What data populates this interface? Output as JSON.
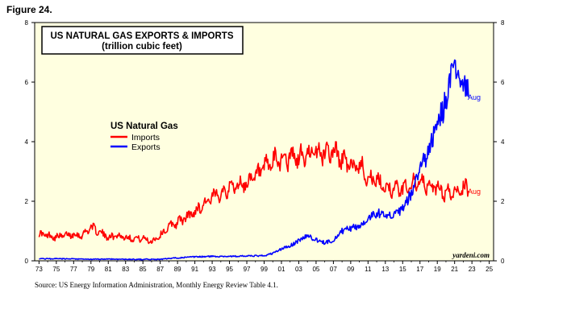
{
  "figure_label": "Figure 24.",
  "source": "Source: US Energy Information Administration, Monthly Energy Review Table 4.1.",
  "watermark": "yardeni.com",
  "chart_data": {
    "type": "line",
    "title": "US NATURAL GAS EXPORTS & IMPORTS",
    "subtitle": "(trillion cubic feet)",
    "legend_title": "US Natural Gas",
    "legend_position": "upper-left",
    "grid": false,
    "xlim": [
      1972.5,
      2025.5
    ],
    "ylim": [
      0,
      8
    ],
    "x_ticks": [
      "73",
      "75",
      "77",
      "79",
      "81",
      "83",
      "85",
      "87",
      "89",
      "91",
      "93",
      "95",
      "97",
      "99",
      "01",
      "03",
      "05",
      "07",
      "09",
      "11",
      "13",
      "15",
      "17",
      "19",
      "21",
      "23",
      "25"
    ],
    "y_ticks_left": [
      "0",
      "2",
      "4",
      "6",
      "8"
    ],
    "y_ticks_right": [
      "0",
      "2",
      "4",
      "6",
      "8"
    ],
    "colors": {
      "imports": "#ff0000",
      "exports": "#0000ff",
      "plot_bg": "#ffffe0"
    },
    "series": [
      {
        "name": "Imports",
        "end_label": "Aug",
        "color": "#ff0000",
        "x": [
          1973,
          1974,
          1975,
          1976,
          1977,
          1978,
          1979,
          1980,
          1981,
          1982,
          1983,
          1984,
          1985,
          1986,
          1987,
          1988,
          1989,
          1990,
          1991,
          1992,
          1993,
          1994,
          1995,
          1996,
          1997,
          1998,
          1999,
          2000,
          2001,
          2002,
          2003,
          2004,
          2005,
          2006,
          2007,
          2008,
          2009,
          2010,
          2011,
          2012,
          2013,
          2014,
          2015,
          2016,
          2017,
          2018,
          2019,
          2020,
          2021,
          2022,
          2022.6
        ],
        "y": [
          0.9,
          0.85,
          0.8,
          0.85,
          0.9,
          0.85,
          1.15,
          0.95,
          0.8,
          0.85,
          0.8,
          0.75,
          0.75,
          0.65,
          0.85,
          1.15,
          1.3,
          1.45,
          1.65,
          1.9,
          2.1,
          2.3,
          2.45,
          2.55,
          2.6,
          2.8,
          3.1,
          3.3,
          3.45,
          3.45,
          3.45,
          3.55,
          3.6,
          3.65,
          3.7,
          3.4,
          3.15,
          3.25,
          2.8,
          2.65,
          2.5,
          2.4,
          2.4,
          2.6,
          2.6,
          2.5,
          2.45,
          2.25,
          2.3,
          2.5,
          2.35
        ]
      },
      {
        "name": "Exports",
        "end_label": "Aug",
        "color": "#0000ff",
        "x": [
          1973,
          1975,
          1977,
          1979,
          1981,
          1983,
          1985,
          1987,
          1989,
          1991,
          1993,
          1995,
          1997,
          1999,
          2000,
          2001,
          2002,
          2003,
          2004,
          2005,
          2006,
          2007,
          2008,
          2009,
          2010,
          2011,
          2012,
          2013,
          2014,
          2015,
          2016,
          2017,
          2018,
          2019,
          2020,
          2021,
          2022,
          2022.6
        ],
        "y": [
          0.07,
          0.07,
          0.06,
          0.05,
          0.06,
          0.05,
          0.05,
          0.05,
          0.1,
          0.13,
          0.15,
          0.15,
          0.16,
          0.17,
          0.25,
          0.4,
          0.5,
          0.68,
          0.85,
          0.7,
          0.6,
          0.7,
          1.0,
          1.1,
          1.15,
          1.45,
          1.6,
          1.6,
          1.5,
          1.75,
          2.25,
          3.1,
          3.6,
          4.65,
          5.3,
          6.55,
          6.1,
          5.5
        ]
      }
    ]
  }
}
